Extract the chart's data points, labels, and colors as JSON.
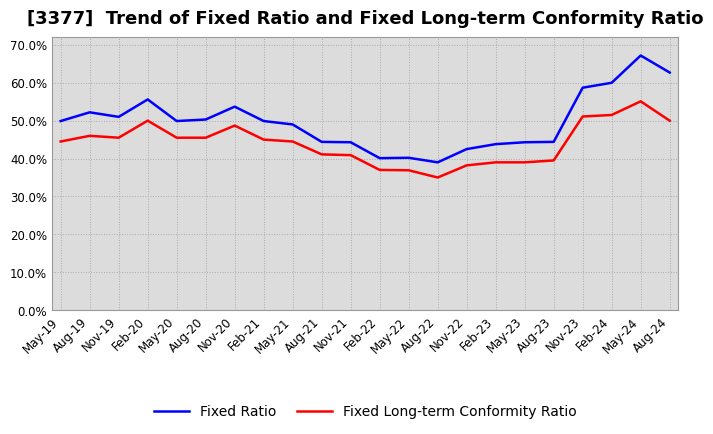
{
  "title": "[3377]  Trend of Fixed Ratio and Fixed Long-term Conformity Ratio",
  "x_labels": [
    "May-19",
    "Aug-19",
    "Nov-19",
    "Feb-20",
    "May-20",
    "Aug-20",
    "Nov-20",
    "Feb-21",
    "May-21",
    "Aug-21",
    "Nov-21",
    "Feb-22",
    "May-22",
    "Aug-22",
    "Nov-22",
    "Feb-23",
    "May-23",
    "Aug-23",
    "Nov-23",
    "Feb-24",
    "May-24",
    "Aug-24"
  ],
  "fixed_ratio": [
    0.499,
    0.522,
    0.51,
    0.556,
    0.499,
    0.503,
    0.537,
    0.499,
    0.49,
    0.444,
    0.443,
    0.401,
    0.402,
    0.39,
    0.425,
    0.438,
    0.443,
    0.444,
    0.587,
    0.6,
    0.672,
    0.627
  ],
  "fixed_lt_ratio": [
    0.445,
    0.46,
    0.455,
    0.5,
    0.455,
    0.455,
    0.487,
    0.45,
    0.445,
    0.411,
    0.409,
    0.37,
    0.369,
    0.35,
    0.382,
    0.39,
    0.39,
    0.395,
    0.511,
    0.515,
    0.551,
    0.5
  ],
  "blue_color": "#0000ff",
  "red_color": "#ff0000",
  "background_color": "#ffffff",
  "plot_bg_color": "#dcdcdc",
  "grid_color": "#aaaaaa",
  "ylim": [
    0.0,
    0.72
  ],
  "yticks": [
    0.0,
    0.1,
    0.2,
    0.3,
    0.4,
    0.5,
    0.6,
    0.7
  ],
  "legend_fixed_ratio": "Fixed Ratio",
  "legend_fixed_lt": "Fixed Long-term Conformity Ratio",
  "title_fontsize": 13,
  "tick_fontsize": 8.5,
  "legend_fontsize": 10,
  "line_width": 1.8
}
